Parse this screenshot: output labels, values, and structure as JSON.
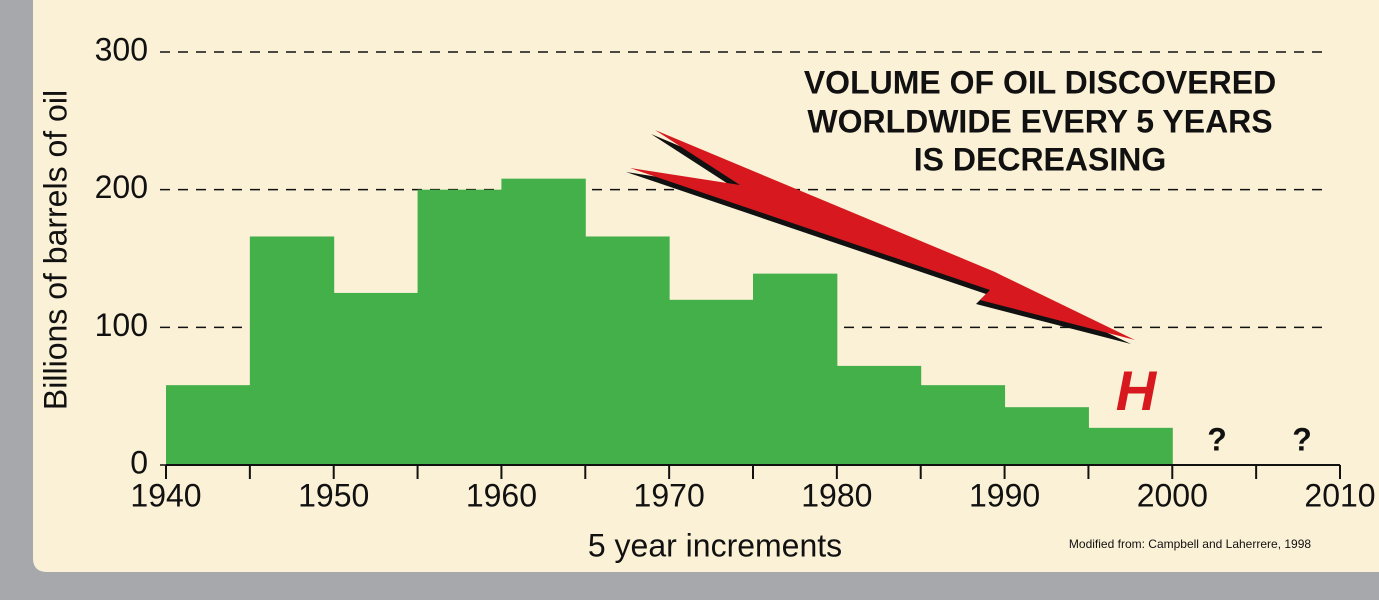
{
  "chart_data": {
    "type": "histogram",
    "title": [
      "VOLUME OF OIL DISCOVERED",
      "WORLDWIDE EVERY 5 YEARS",
      "IS DECREASING"
    ],
    "ylabel": "Billions of barrels of oil",
    "xlabel": "5 year increments",
    "source": "Modified from: Campbell and Laherrere, 1998",
    "annotations": [
      "H",
      "?",
      "?"
    ],
    "bins": [
      1940,
      1945,
      1950,
      1955,
      1960,
      1965,
      1970,
      1975,
      1980,
      1985,
      1990,
      1995,
      2000
    ],
    "values": [
      58,
      166,
      125,
      200,
      208,
      166,
      120,
      139,
      72,
      58,
      42,
      27
    ],
    "color": "#43b04a",
    "xlim": [
      1940,
      2010
    ],
    "xticks": [
      1940,
      1950,
      1960,
      1970,
      1980,
      1990,
      2000,
      2010
    ],
    "xminor_ticks": [
      1945,
      1955,
      1965,
      1975,
      1985,
      1995,
      2005
    ],
    "ylim": [
      0,
      300
    ],
    "yticks": [
      0,
      100,
      200,
      300
    ],
    "grid": true
  }
}
